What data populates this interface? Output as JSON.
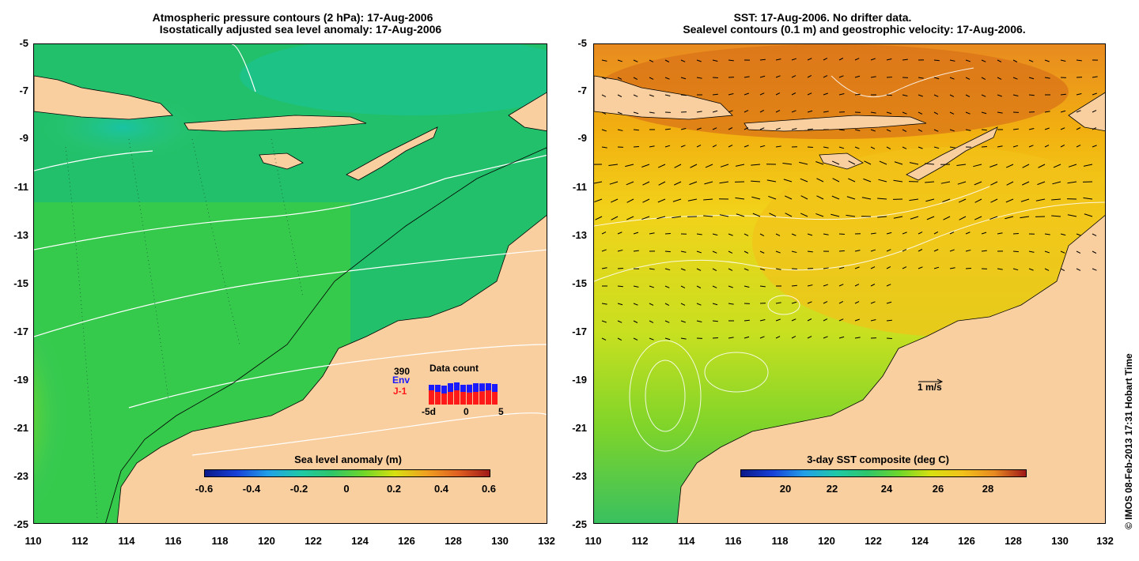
{
  "left_panel": {
    "title_line1": "Atmospheric pressure contours (2 hPa): 17-Aug-2006",
    "title_line2": "Isostatically adjusted sea level anomaly: 17-Aug-2006",
    "colorbar": {
      "label": "Sea level anomaly (m)",
      "ticks": [
        "-0.6",
        "-0.4",
        "-0.2",
        "0",
        "0.2",
        "0.4",
        "0.6"
      ],
      "range": [
        -0.6,
        0.6
      ]
    },
    "inset": {
      "env_count": "390",
      "env_label": "Env",
      "j1_label": "J-1",
      "title": "Data count",
      "axis_ticks": [
        "-5d",
        "0",
        "5"
      ],
      "env_color": "#1a1aff",
      "j1_color": "#ff1a1a"
    }
  },
  "right_panel": {
    "title_line1": "SST: 17-Aug-2006. No drifter data.",
    "title_line2": "Sealevel contours (0.1 m) and geostrophic velocity: 17-Aug-2006.",
    "colorbar": {
      "label": "3-day SST composite (deg C)",
      "ticks": [
        "20",
        "22",
        "24",
        "26",
        "28"
      ],
      "range": [
        18.5,
        29
      ]
    },
    "scale_label": "1 m/s"
  },
  "axes": {
    "x_ticks": [
      "110",
      "112",
      "114",
      "116",
      "118",
      "120",
      "122",
      "124",
      "126",
      "128",
      "130",
      "132"
    ],
    "y_ticks": [
      "-5",
      "-7",
      "-9",
      "-11",
      "-13",
      "-15",
      "-17",
      "-19",
      "-21",
      "-23",
      "-25"
    ],
    "lon_range": [
      110,
      132
    ],
    "lat_range": [
      -25,
      -5
    ]
  },
  "credit": "© IMOS 08-Feb-2013 17:31 Hobart Time",
  "colors": {
    "land": "#f9cfa0",
    "ocean_sla": "#2ec66a",
    "ocean_sst": "#f2d21a"
  }
}
